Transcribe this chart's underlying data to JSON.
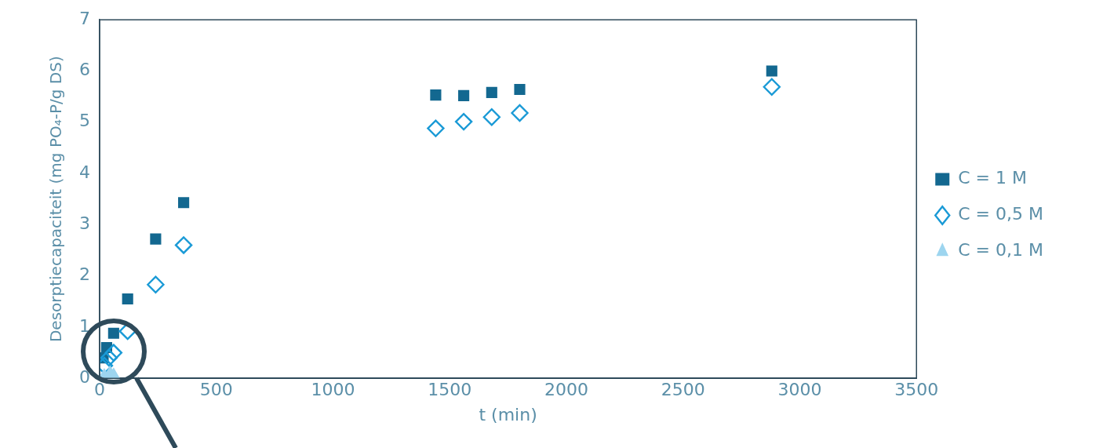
{
  "chart_data": {
    "type": "scatter",
    "xlabel": "t (min)",
    "ylabel": "Desorptiecapaciteit (mg PO₄-P/g DS)",
    "xlim": [
      0,
      3500
    ],
    "xticks": [
      0,
      500,
      1000,
      1500,
      2000,
      2500,
      3000,
      3500
    ],
    "ylim": [
      0,
      7
    ],
    "yticks": [
      0,
      1,
      2,
      3,
      4,
      5,
      6,
      7
    ],
    "grid": false,
    "legend": "right",
    "series": [
      {
        "name": "C = 1 M",
        "color": "#136890",
        "marker": "square",
        "x": [
          15,
          30,
          60,
          120,
          240,
          360,
          1440,
          1560,
          1680,
          1800,
          2880
        ],
        "values": [
          0.4,
          0.6,
          0.88,
          1.55,
          2.72,
          3.43,
          5.53,
          5.52,
          5.58,
          5.64,
          6.0
        ]
      },
      {
        "name": "C = 0,5 M",
        "color": "#1a9ad6",
        "marker": "diamond",
        "x": [
          20,
          40,
          60,
          120,
          240,
          360,
          1440,
          1560,
          1680,
          1800,
          2880
        ],
        "values": [
          0.25,
          0.4,
          0.5,
          0.92,
          1.83,
          2.6,
          4.88,
          5.01,
          5.1,
          5.18,
          5.69
        ]
      },
      {
        "name": "C = 0,1 M",
        "color": "#9dd5ef",
        "marker": "triangle",
        "x": [
          20,
          45,
          60
        ],
        "values": [
          0.05,
          0.1,
          0.06
        ]
      }
    ]
  }
}
